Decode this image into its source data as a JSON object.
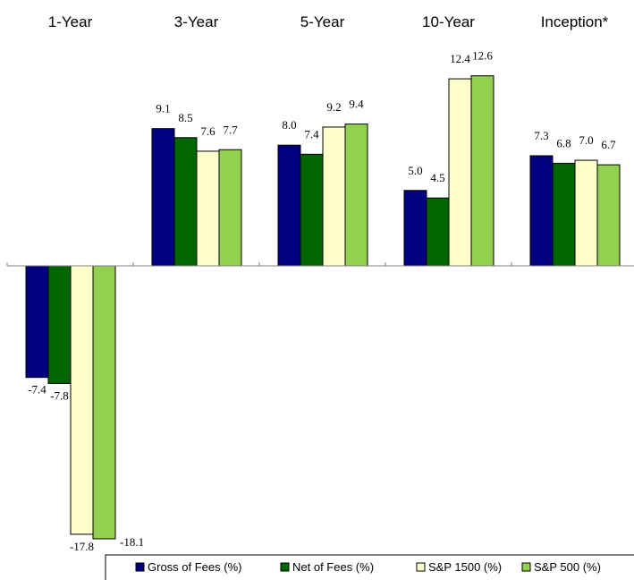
{
  "chart_data": {
    "type": "bar",
    "categories": [
      "1-Year",
      "3-Year",
      "5-Year",
      "10-Year",
      "Inception*"
    ],
    "series": [
      {
        "name": "Gross of Fees (%)",
        "color": "#000080",
        "values": [
          -7.4,
          9.1,
          8.0,
          5.0,
          7.3
        ],
        "labels": [
          "-7.4",
          "9.1",
          "8.0",
          "5.0",
          "7.3"
        ]
      },
      {
        "name": "Net of Fees (%)",
        "color": "#006600",
        "values": [
          -7.8,
          8.5,
          7.4,
          4.5,
          6.8
        ],
        "labels": [
          "-7.8",
          "8.5",
          "7.4",
          "4.5",
          "6.8"
        ]
      },
      {
        "name": "S&P 1500 (%)",
        "color": "#FFFFCC",
        "values": [
          -17.8,
          7.6,
          9.2,
          12.4,
          7.0
        ],
        "labels": [
          "-17.8",
          "7.6",
          "9.2",
          "12.4",
          "7.0"
        ]
      },
      {
        "name": "S&P 500 (%)",
        "color": "#92D050",
        "values": [
          -18.1,
          7.7,
          9.4,
          12.6,
          6.7
        ],
        "labels": [
          "-18.1",
          "7.7",
          "9.4",
          "12.6",
          "6.7"
        ]
      }
    ],
    "title": "",
    "xlabel": "",
    "ylabel": "",
    "ylim": [
      -18.1,
      12.6
    ],
    "grid": false,
    "legend_position": "bottom-right"
  }
}
